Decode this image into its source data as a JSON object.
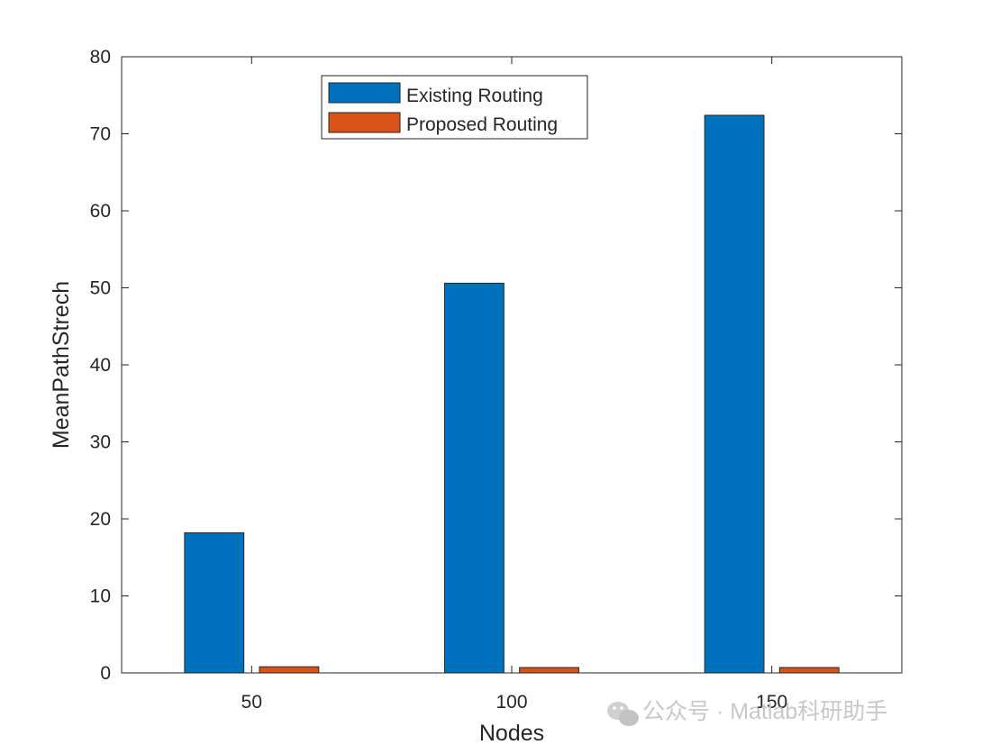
{
  "chart_data": {
    "type": "bar",
    "categories": [
      "50",
      "100",
      "150"
    ],
    "series": [
      {
        "name": "Existing Routing",
        "color": "#0072BD",
        "values": [
          18.2,
          50.6,
          72.4
        ]
      },
      {
        "name": "Proposed Routing",
        "color": "#D95319",
        "values": [
          0.8,
          0.7,
          0.7
        ]
      }
    ],
    "xlabel": "Nodes",
    "ylabel": "MeanPathStrech",
    "ylim": [
      0,
      80
    ],
    "yticks": [
      0,
      10,
      20,
      30,
      40,
      50,
      60,
      70,
      80
    ],
    "grid": false,
    "legend_position": "top-left"
  },
  "watermark": {
    "text": "公众号 · Matlab科研助手",
    "icon": "wechat-icon"
  }
}
